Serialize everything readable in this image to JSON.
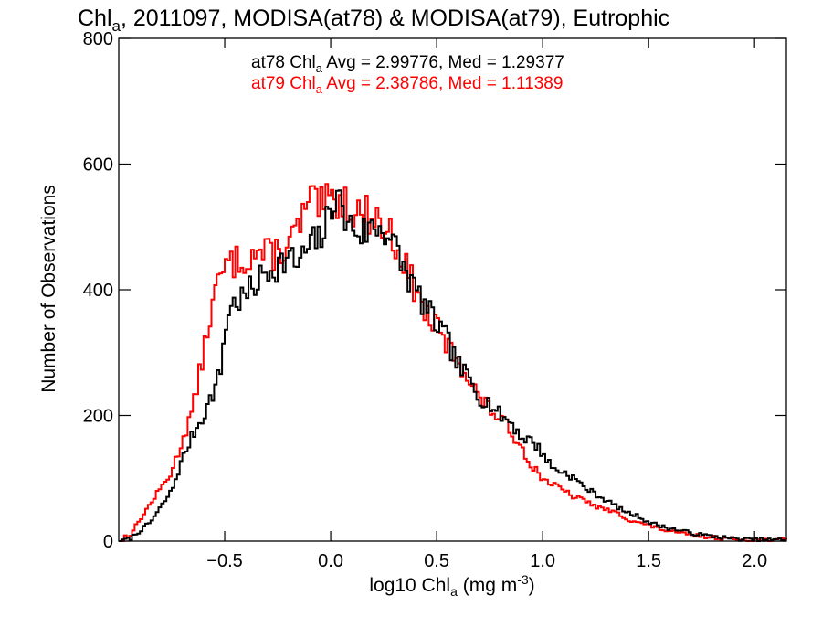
{
  "chart_data": {
    "type": "line",
    "title_prefix": "Chl",
    "title_sub": "a",
    "title_suffix": ", 2011097, MODISA(at78) & MODISA(at79), Eutrophic",
    "xlabel_prefix": "log10 Chl",
    "xlabel_sub": "a",
    "xlabel_unit_pre": " (mg m",
    "xlabel_unit_sup": "-3",
    "xlabel_unit_post": ")",
    "ylabel": "Number of Observations",
    "xlim": [
      -1.0,
      2.15
    ],
    "ylim": [
      0,
      800
    ],
    "xticks": [
      -0.5,
      0.0,
      0.5,
      1.0,
      1.5,
      2.0
    ],
    "xtick_labels": [
      "−0.5",
      "0.0",
      "0.5",
      "1.0",
      "1.5",
      "2.0"
    ],
    "yticks": [
      0,
      200,
      400,
      600,
      800
    ],
    "ytick_labels": [
      "0",
      "200",
      "400",
      "600",
      "800"
    ],
    "grid": false,
    "stats": [
      {
        "series": "at78",
        "chl": " Chl",
        "sub": "a",
        "text": " Avg = 2.99776, Med = 1.29377",
        "color": "#000000"
      },
      {
        "series": "at79",
        "chl": " Chl",
        "sub": "a",
        "text": " Avg = 2.38786, Med = 1.11389",
        "color": "#ff0000"
      }
    ],
    "series": [
      {
        "name": "at78",
        "color": "#000000",
        "x": [
          -0.95,
          -0.85,
          -0.75,
          -0.7,
          -0.65,
          -0.6,
          -0.55,
          -0.52,
          -0.5,
          -0.48,
          -0.45,
          -0.4,
          -0.35,
          -0.3,
          -0.25,
          -0.2,
          -0.15,
          -0.1,
          -0.05,
          0.0,
          0.03,
          0.05,
          0.1,
          0.15,
          0.2,
          0.25,
          0.3,
          0.35,
          0.4,
          0.45,
          0.5,
          0.55,
          0.6,
          0.65,
          0.7,
          0.75,
          0.8,
          0.85,
          0.9,
          0.95,
          1.0,
          1.05,
          1.1,
          1.15,
          1.2,
          1.25,
          1.3,
          1.35,
          1.4,
          1.45,
          1.5,
          1.55,
          1.6,
          1.65,
          1.7,
          1.75,
          1.8,
          1.85,
          1.9,
          1.95,
          2.0
        ],
        "y": [
          3,
          30,
          80,
          130,
          170,
          200,
          240,
          270,
          330,
          370,
          380,
          390,
          410,
          430,
          440,
          450,
          440,
          470,
          480,
          520,
          575,
          520,
          500,
          490,
          500,
          500,
          470,
          430,
          400,
          370,
          345,
          320,
          280,
          260,
          230,
          220,
          200,
          190,
          165,
          160,
          140,
          115,
          110,
          100,
          85,
          75,
          65,
          55,
          45,
          40,
          30,
          25,
          20,
          17,
          13,
          10,
          8,
          6,
          4,
          3,
          2
        ]
      },
      {
        "name": "at79",
        "color": "#ff0000",
        "x": [
          -0.95,
          -0.85,
          -0.75,
          -0.7,
          -0.65,
          -0.6,
          -0.55,
          -0.5,
          -0.45,
          -0.4,
          -0.35,
          -0.3,
          -0.25,
          -0.2,
          -0.15,
          -0.1,
          -0.05,
          0.0,
          0.05,
          0.1,
          0.15,
          0.2,
          0.25,
          0.3,
          0.35,
          0.4,
          0.45,
          0.5,
          0.55,
          0.6,
          0.65,
          0.7,
          0.75,
          0.8,
          0.85,
          0.9,
          0.95,
          1.0,
          1.05,
          1.1,
          1.15,
          1.2,
          1.25,
          1.3,
          1.35,
          1.4,
          1.45,
          1.5,
          1.55,
          1.6,
          1.65,
          1.7,
          1.75,
          1.8,
          1.85,
          1.9,
          1.95,
          2.0
        ],
        "y": [
          8,
          60,
          110,
          160,
          210,
          300,
          390,
          435,
          445,
          450,
          460,
          455,
          460,
          470,
          500,
          540,
          530,
          540,
          545,
          530,
          520,
          520,
          500,
          480,
          440,
          400,
          360,
          340,
          310,
          290,
          260,
          230,
          210,
          195,
          175,
          150,
          120,
          100,
          90,
          80,
          70,
          65,
          55,
          50,
          45,
          35,
          30,
          25,
          20,
          15,
          12,
          10,
          8,
          6,
          5,
          3,
          2,
          2
        ]
      }
    ]
  }
}
